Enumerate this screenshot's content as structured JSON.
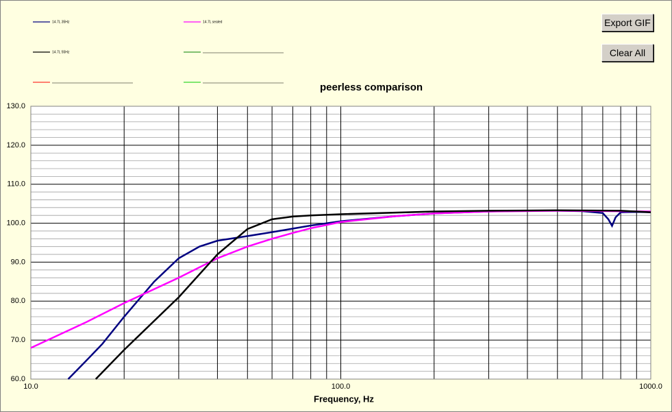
{
  "chart_data": {
    "type": "line",
    "title": "peerless comparison",
    "x_label": "Frequency, Hz",
    "x_log": true,
    "xlim": [
      10,
      1000
    ],
    "xticks": [
      {
        "value": 10,
        "label": "10.0"
      },
      {
        "value": 100,
        "label": "100.0"
      },
      {
        "value": 1000,
        "label": "1000.0"
      }
    ],
    "x_minor_grid": [
      20,
      30,
      40,
      50,
      60,
      70,
      80,
      90,
      200,
      300,
      400,
      500,
      600,
      700,
      800,
      900
    ],
    "ylim": [
      60,
      130
    ],
    "yticks": [
      {
        "value": 60,
        "label": "60.0"
      },
      {
        "value": 70,
        "label": "70.0"
      },
      {
        "value": 80,
        "label": "80.0"
      },
      {
        "value": 90,
        "label": "90.0"
      },
      {
        "value": 100,
        "label": "100.0"
      },
      {
        "value": 110,
        "label": "110.0"
      },
      {
        "value": 120,
        "label": "120.0"
      },
      {
        "value": 130,
        "label": "130.0"
      }
    ],
    "y_minor_grid": [
      62,
      64,
      66,
      68,
      72,
      74,
      76,
      78,
      82,
      84,
      86,
      88,
      92,
      94,
      96,
      98,
      102,
      104,
      106,
      108,
      112,
      114,
      116,
      118,
      122,
      124,
      126,
      128
    ],
    "series": [
      {
        "name": "14.7L 35Hz",
        "color": "#000080",
        "x": [
          13.2,
          15,
          17,
          20,
          25,
          30,
          35,
          40,
          50,
          60,
          70,
          80,
          100,
          150,
          200,
          300,
          400,
          500,
          600,
          700,
          730,
          750,
          770,
          800,
          900,
          1000
        ],
        "values": [
          60,
          64.5,
          69,
          76,
          85,
          91,
          94,
          95.5,
          96.7,
          97.7,
          98.6,
          99.4,
          100.5,
          101.8,
          102.5,
          103,
          103.2,
          103.2,
          103.1,
          102.6,
          101,
          99.3,
          101.5,
          102.8,
          102.9,
          102.8
        ]
      },
      {
        "name": "14.7L sealed",
        "color": "#ff00ff",
        "x": [
          10,
          15,
          20,
          30,
          40,
          50,
          60,
          70,
          80,
          100,
          150,
          200,
          300,
          500,
          1000
        ],
        "values": [
          68,
          74.5,
          79.5,
          86,
          91,
          94,
          96,
          97.5,
          98.7,
          100.3,
          101.8,
          102.5,
          103,
          103.2,
          103
        ]
      },
      {
        "name": "14.7L 55Hz",
        "color": "#000000",
        "x": [
          16.2,
          20,
          30,
          40,
          50,
          60,
          70,
          80,
          100,
          200,
          300,
          500,
          800,
          1000
        ],
        "values": [
          60,
          67.5,
          81,
          92,
          98.5,
          101,
          101.7,
          102,
          102.3,
          103,
          103.2,
          103.3,
          103.2,
          102.8
        ]
      }
    ]
  },
  "buttons": [
    "Export GIF",
    "Clear All"
  ]
}
